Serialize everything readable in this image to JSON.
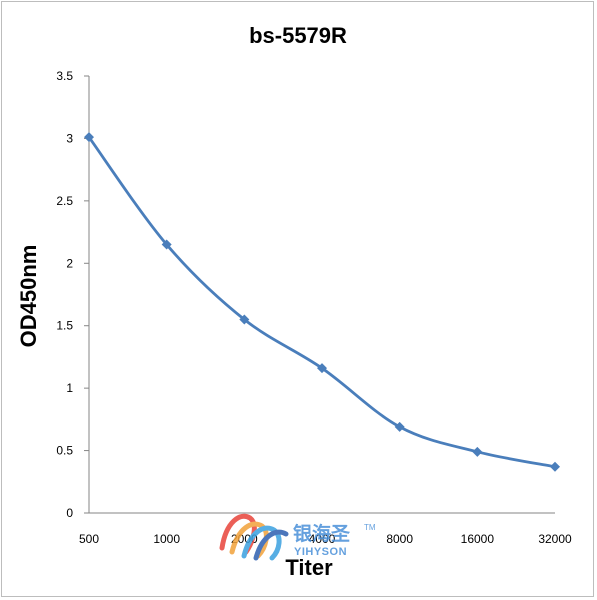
{
  "chart_data": {
    "type": "line",
    "title": "bs-5579R",
    "xlabel": "Titer",
    "ylabel": "OD450nm",
    "categories": [
      "500",
      "1000",
      "2000",
      "4000",
      "8000",
      "16000",
      "32000"
    ],
    "series": [
      {
        "values": [
          3.01,
          2.15,
          1.55,
          1.16,
          0.69,
          0.49,
          0.37
        ]
      }
    ],
    "ylim": [
      0,
      3.5
    ],
    "yticks": [
      "0",
      "0.5",
      "1",
      "1.5",
      "2",
      "2.5",
      "3",
      "3.5"
    ],
    "grid": false,
    "line_color": "#4a7ebb",
    "marker": "diamond"
  },
  "watermark": {
    "cn_text": "银海圣",
    "en_text": "YIHYSON",
    "tm": "TM",
    "colors": [
      "#e8443a",
      "#f2a23a",
      "#3aa0e0",
      "#2d5fb0"
    ]
  }
}
